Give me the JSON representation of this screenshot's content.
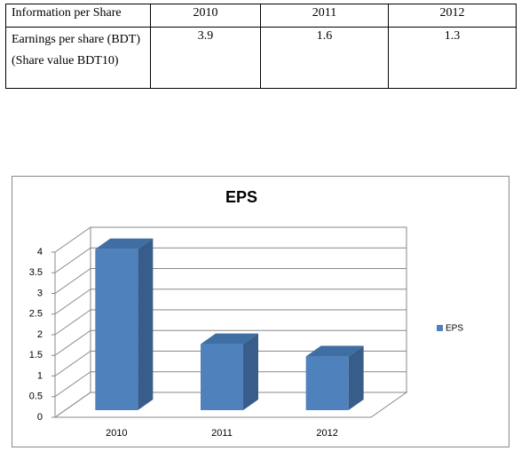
{
  "table": {
    "header": [
      "Information per Share",
      "2010",
      "2011",
      "2012"
    ],
    "rows": [
      [
        "Earnings per share (BDT)",
        "3.9",
        "1.6",
        "1.3"
      ]
    ],
    "note": "(Share value BDT10)"
  },
  "chart_data": {
    "type": "bar",
    "title": "EPS",
    "categories": [
      "2010",
      "2011",
      "2012"
    ],
    "series": [
      {
        "name": "EPS",
        "color": "#4f81bd",
        "values": [
          3.9,
          1.6,
          1.3
        ]
      }
    ],
    "ylim": [
      0,
      4
    ],
    "yticks": [
      0,
      0.5,
      1,
      1.5,
      2,
      2.5,
      3,
      3.5,
      4
    ],
    "grid": true,
    "legend": "right"
  }
}
